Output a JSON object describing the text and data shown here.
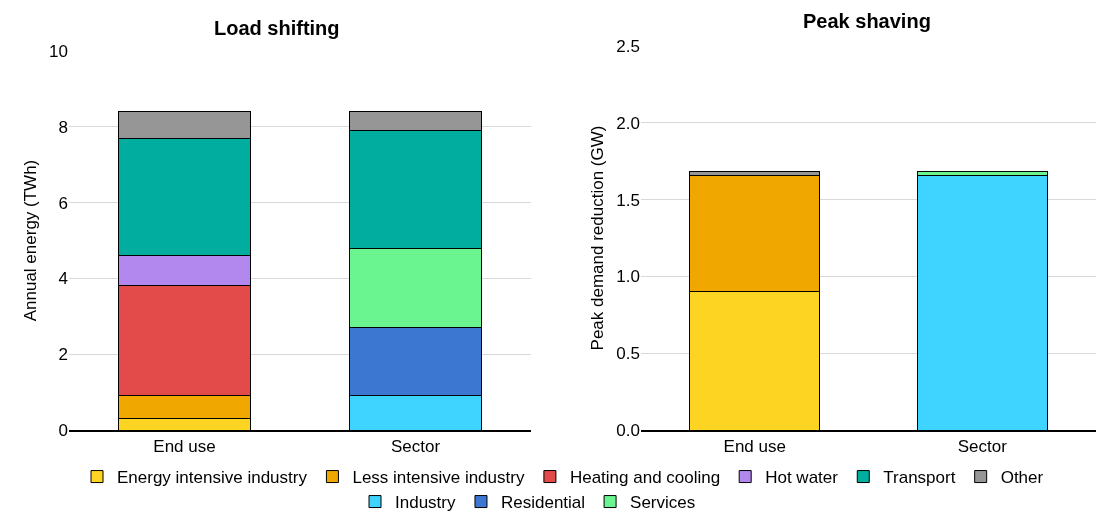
{
  "chart_data": [
    {
      "type": "bar",
      "title": "Load shifting",
      "ylabel": "Annual energy (TWh)",
      "categories": [
        "End use",
        "Sector"
      ],
      "stacked": true,
      "ylim": [
        0,
        10
      ],
      "yticks": [
        0,
        2,
        4,
        6,
        8,
        10
      ],
      "grid": "y",
      "legend": "bottom",
      "series": [
        {
          "name": "Energy intensive industry",
          "color": "#fdd422",
          "values": [
            0.3,
            null
          ]
        },
        {
          "name": "Less intensive industry",
          "color": "#f0a800",
          "values": [
            0.6,
            null
          ]
        },
        {
          "name": "Heating and cooling",
          "color": "#e34a4a",
          "values": [
            2.9,
            null
          ]
        },
        {
          "name": "Hot water",
          "color": "#b388ee",
          "values": [
            0.8,
            null
          ]
        },
        {
          "name": "Industry",
          "color": "#3fd4ff",
          "values": [
            null,
            0.9
          ]
        },
        {
          "name": "Residential",
          "color": "#3c78d2",
          "values": [
            null,
            1.8
          ]
        },
        {
          "name": "Services",
          "color": "#6af590",
          "values": [
            null,
            2.1
          ]
        },
        {
          "name": "Transport",
          "color": "#00ad9f",
          "values": [
            3.1,
            3.1
          ]
        },
        {
          "name": "Other",
          "color": "#969696",
          "values": [
            0.7,
            0.5
          ]
        }
      ]
    },
    {
      "type": "bar",
      "title": "Peak shaving",
      "ylabel": "Peak demand reduction (GW)",
      "categories": [
        "End use",
        "Sector"
      ],
      "stacked": true,
      "ylim": [
        0,
        2.5
      ],
      "yticks": [
        {
          "value": 0,
          "label": "0.0"
        },
        0.5,
        {
          "value": 1,
          "label": "1.0"
        },
        1.5,
        {
          "value": 2,
          "label": "2.0"
        },
        2.5
      ],
      "grid": "y",
      "series": [
        {
          "color": "#fdd422",
          "values": [
            0.9,
            null
          ]
        },
        {
          "color": "#f0a800",
          "values": [
            0.76,
            null
          ]
        },
        {
          "color": "#969696",
          "values": [
            0.02,
            null
          ]
        },
        {
          "color": "#3fd4ff",
          "values": [
            null,
            1.66
          ]
        },
        {
          "color": "#6af590",
          "values": [
            null,
            0.02
          ]
        }
      ]
    }
  ]
}
